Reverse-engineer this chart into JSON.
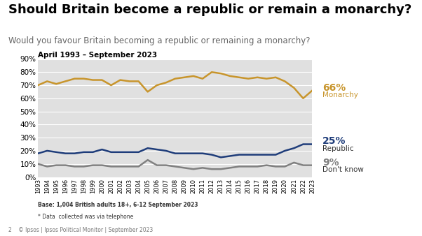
{
  "title": "Should Britain become a republic or remain a monarchy?",
  "subtitle": "Would you favour Britain becoming a republic or remaining a monarchy?",
  "period_label": "April 1993 – September 2023",
  "base_note": "Base: 1,004 British adults 18+, 6-12 September 2023",
  "footnote": "* Data  collected was via telephone",
  "footer_left": "2    © Ipsos | Ipsos Political Monitor | September 2023",
  "background_color": "#ffffff",
  "plot_bg_color": "#e0e0e0",
  "years": [
    1993,
    1994,
    1995,
    1996,
    1997,
    1998,
    1999,
    2000,
    2001,
    2002,
    2003,
    2004,
    2005,
    2006,
    2007,
    2008,
    2009,
    2010,
    2011,
    2012,
    2013,
    2014,
    2015,
    2016,
    2017,
    2018,
    2019,
    2020,
    2021,
    2022,
    2023
  ],
  "monarchy": [
    70,
    73,
    71,
    73,
    75,
    75,
    74,
    74,
    70,
    74,
    73,
    73,
    65,
    70,
    72,
    75,
    76,
    77,
    75,
    80,
    79,
    77,
    76,
    75,
    76,
    75,
    76,
    73,
    68,
    60,
    66
  ],
  "republic": [
    18,
    20,
    19,
    18,
    18,
    19,
    19,
    21,
    19,
    19,
    19,
    19,
    22,
    21,
    20,
    18,
    18,
    18,
    18,
    17,
    15,
    16,
    17,
    17,
    17,
    17,
    17,
    20,
    22,
    25,
    25
  ],
  "dontknow": [
    10,
    8,
    9,
    9,
    8,
    8,
    9,
    9,
    8,
    8,
    8,
    8,
    13,
    9,
    9,
    8,
    7,
    6,
    7,
    6,
    6,
    7,
    8,
    8,
    8,
    9,
    8,
    8,
    11,
    9,
    9
  ],
  "monarchy_color": "#c8952c",
  "republic_color": "#1f3d7a",
  "dontknow_color": "#808080",
  "ylim": [
    0,
    90
  ],
  "yticks": [
    0,
    10,
    20,
    30,
    40,
    50,
    60,
    70,
    80,
    90
  ],
  "title_fontsize": 13,
  "subtitle_fontsize": 8.5,
  "axis_fontsize": 7.5
}
